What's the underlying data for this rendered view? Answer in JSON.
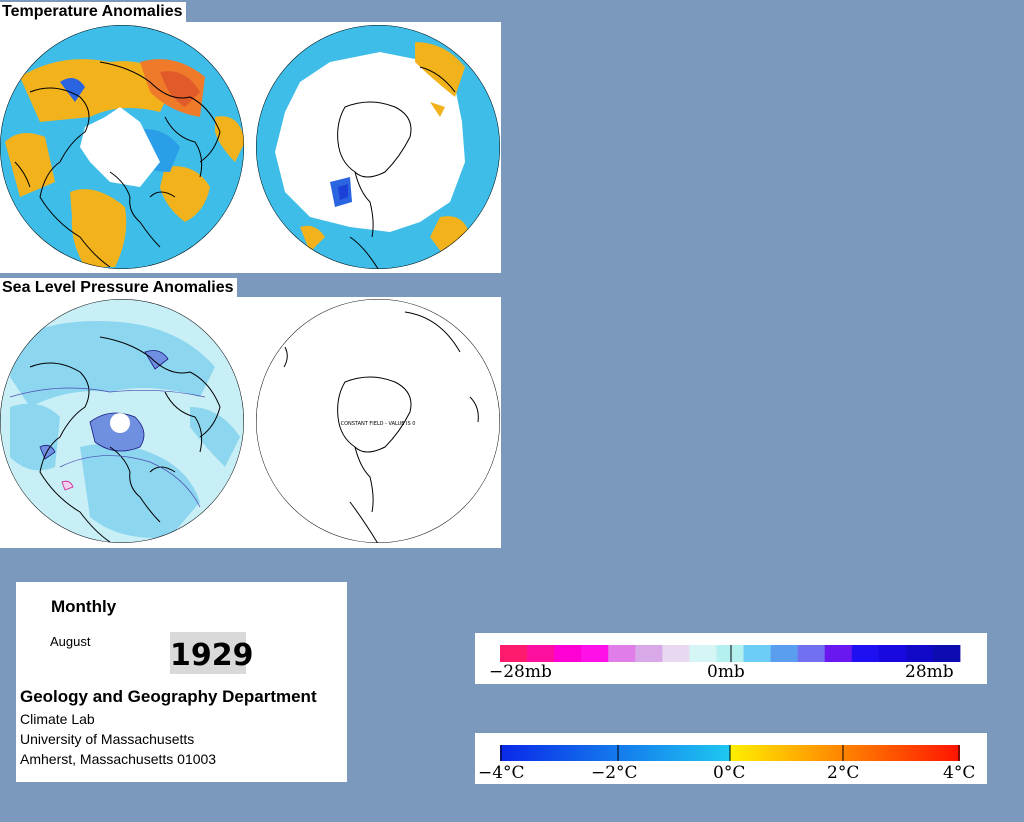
{
  "titles": {
    "temperature": "Temperature Anomalies",
    "pressure": "Sea Level Pressure Anomalies"
  },
  "maps": {
    "nh_temperature": "northern-hemisphere-temperature-anomaly",
    "sh_temperature": "southern-hemisphere-temperature-anomaly",
    "nh_pressure": "northern-hemisphere-pressure-anomaly",
    "sh_pressure": "southern-hemisphere-pressure-anomaly",
    "sh_pressure_note": "CONSTANT FIELD - VALUE IS 0"
  },
  "info": {
    "period": "Monthly",
    "month": "August",
    "year": "1929",
    "department": "Geology and Geography Department",
    "lab": "Climate Lab",
    "university": "University of Massachusetts",
    "address": "Amherst, Massachusetts 01003"
  },
  "pressure_legend": {
    "labels": [
      "−28mb",
      "0mb",
      "28mb"
    ],
    "colors": [
      "#ff1a6e",
      "#ff0f9f",
      "#ff00d4",
      "#ff10e8",
      "#e07de8",
      "#d8a8e8",
      "#e8d8f0",
      "#d6f5f5",
      "#b5f0f0",
      "#6ccdf7",
      "#5a9ef0",
      "#7070f0",
      "#6a18f0",
      "#1e10f0",
      "#1a08e0",
      "#1208c8",
      "#0c0cb0"
    ],
    "unit": "mb"
  },
  "temperature_legend": {
    "labels": [
      "−4°C",
      "−2°C",
      "0°C",
      "2°C",
      "4°C"
    ],
    "negative_gradient": [
      "#0a28e8",
      "#1ec8f0"
    ],
    "positive_gradient": [
      "#fff000",
      "#ff1400"
    ],
    "unit": "°C"
  },
  "colors": {
    "background": "#7b99bd",
    "warm": "#f2b21c",
    "warm_strong": "#ef7a2a",
    "cool": "#3dbde8",
    "cool_strong": "#2a64e0",
    "low_pressure_light": "#c8eef6",
    "low_pressure": "#8dd6f0"
  }
}
